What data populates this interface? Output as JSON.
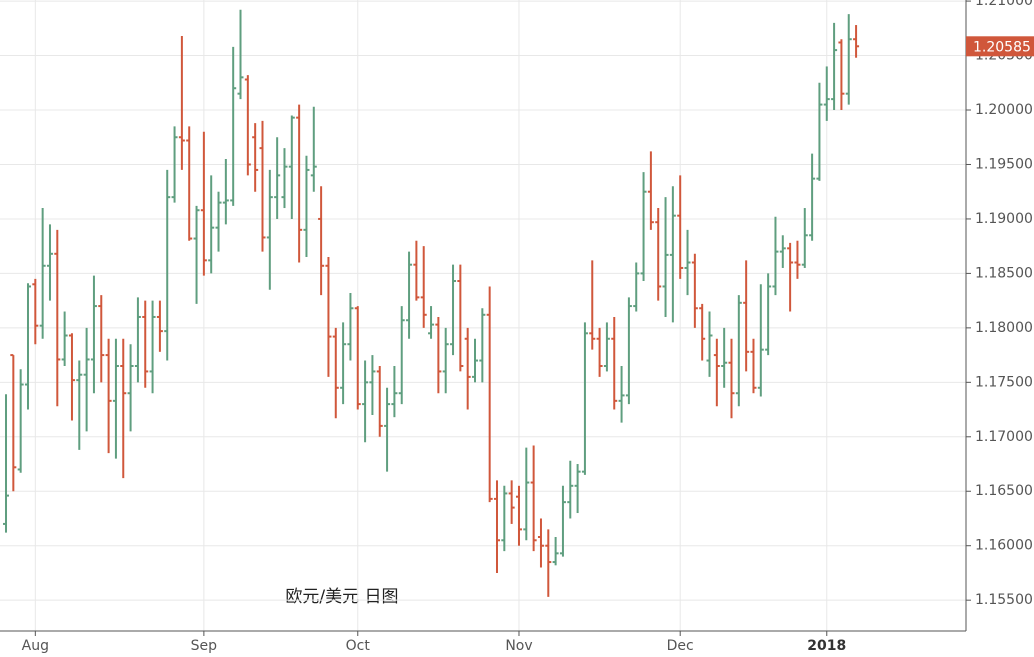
{
  "chart_data": {
    "type": "ohlc",
    "annotation": "欧元/美元 日图",
    "up_color": "#5f9e7f",
    "down_color": "#d0573b",
    "grid": true,
    "xlim": [
      -0.82,
      131
    ],
    "xticks": [
      {
        "value": 4,
        "label": "Aug"
      },
      {
        "value": 27,
        "label": "Sep"
      },
      {
        "value": 48,
        "label": "Oct"
      },
      {
        "value": 70,
        "label": "Nov"
      },
      {
        "value": 92,
        "label": "Dec"
      },
      {
        "value": 112,
        "label": "2018"
      }
    ],
    "ylim": [
      1.15217,
      1.2101
    ],
    "yticks": [
      {
        "value": 1.155,
        "label": "1.15500"
      },
      {
        "value": 1.16,
        "label": "1.16000"
      },
      {
        "value": 1.165,
        "label": "1.16500"
      },
      {
        "value": 1.17,
        "label": "1.17000"
      },
      {
        "value": 1.175,
        "label": "1.17500"
      },
      {
        "value": 1.18,
        "label": "1.18000"
      },
      {
        "value": 1.185,
        "label": "1.18500"
      },
      {
        "value": 1.19,
        "label": "1.19000"
      },
      {
        "value": 1.195,
        "label": "1.19500"
      },
      {
        "value": 1.2,
        "label": "1.20000"
      },
      {
        "value": 1.205,
        "label": "1.20500"
      },
      {
        "value": 1.21,
        "label": "1.21000"
      }
    ],
    "open": [
      1.162,
      1.1775,
      1.167,
      1.1748,
      1.184,
      1.1802,
      1.1857,
      1.1868,
      1.1771,
      1.1793,
      1.1752,
      1.1757,
      1.1771,
      1.182,
      1.1775,
      1.1733,
      1.1765,
      1.174,
      1.1765,
      1.181,
      1.176,
      1.181,
      1.1797,
      1.192,
      1.1975,
      1.1972,
      1.1882,
      1.1908,
      1.1862,
      1.1892,
      1.1915,
      1.1917,
      1.2015,
      1.2028,
      1.1975,
      1.1965,
      1.1883,
      1.192,
      1.192,
      1.1948,
      1.1993,
      1.189,
      1.194,
      1.19,
      1.1857,
      1.1792,
      1.1745,
      1.1785,
      1.1818,
      1.173,
      1.175,
      1.176,
      1.171,
      1.173,
      1.174,
      1.1807,
      1.1858,
      1.1828,
      1.1795,
      1.1803,
      1.176,
      1.1785,
      1.1843,
      1.179,
      1.1755,
      1.177,
      1.1812,
      1.1643,
      1.1605,
      1.1648,
      1.1645,
      1.1615,
      1.1658,
      1.1608,
      1.16,
      1.1585,
      1.1593,
      1.164,
      1.1655,
      1.1668,
      1.1795,
      1.179,
      1.1765,
      1.179,
      1.1733,
      1.1738,
      1.182,
      1.185,
      1.1925,
      1.1897,
      1.1838,
      1.1867,
      1.1903,
      1.1855,
      1.186,
      1.1818,
      1.177,
      1.1775,
      1.1765,
      1.1768,
      1.174,
      1.1823,
      1.1778,
      1.1745,
      1.178,
      1.1838,
      1.187,
      1.1873,
      1.186,
      1.1858,
      1.1885,
      1.1937,
      1.2005,
      1.201,
      1.2062,
      1.2015,
      1.2065
    ],
    "high": [
      1.1739,
      1.1775,
      1.1762,
      1.1841,
      1.1845,
      1.191,
      1.1895,
      1.189,
      1.1815,
      1.1795,
      1.177,
      1.18,
      1.1848,
      1.183,
      1.179,
      1.179,
      1.179,
      1.1785,
      1.1828,
      1.1825,
      1.1825,
      1.1825,
      1.1945,
      1.1985,
      1.2068,
      1.1985,
      1.1912,
      1.198,
      1.194,
      1.1925,
      1.1955,
      1.2058,
      1.2092,
      1.2032,
      1.1988,
      1.199,
      1.1945,
      1.1975,
      1.1965,
      1.1995,
      1.2005,
      1.1958,
      1.2003,
      1.193,
      1.1865,
      1.18,
      1.1805,
      1.1832,
      1.182,
      1.177,
      1.1775,
      1.1765,
      1.1745,
      1.1765,
      1.182,
      1.187,
      1.188,
      1.1875,
      1.182,
      1.181,
      1.18,
      1.1858,
      1.1858,
      1.18,
      1.179,
      1.1818,
      1.1838,
      1.166,
      1.1655,
      1.166,
      1.1655,
      1.169,
      1.1692,
      1.1625,
      1.1615,
      1.1608,
      1.1655,
      1.1678,
      1.1675,
      1.1805,
      1.1862,
      1.18,
      1.1805,
      1.181,
      1.1765,
      1.1828,
      1.186,
      1.1943,
      1.1962,
      1.191,
      1.192,
      1.193,
      1.194,
      1.189,
      1.1868,
      1.1822,
      1.1815,
      1.179,
      1.18,
      1.179,
      1.183,
      1.1862,
      1.179,
      1.184,
      1.185,
      1.1902,
      1.1885,
      1.1878,
      1.188,
      1.191,
      1.196,
      1.2025,
      1.204,
      1.208,
      1.2065,
      1.2088,
      1.2078
    ],
    "low": [
      1.1612,
      1.165,
      1.1667,
      1.1725,
      1.1785,
      1.179,
      1.1825,
      1.1728,
      1.1765,
      1.1715,
      1.1688,
      1.1705,
      1.174,
      1.175,
      1.1685,
      1.168,
      1.1662,
      1.1705,
      1.175,
      1.1745,
      1.174,
      1.1778,
      1.177,
      1.1915,
      1.1945,
      1.188,
      1.1822,
      1.1848,
      1.185,
      1.187,
      1.1895,
      1.1912,
      1.201,
      1.194,
      1.1925,
      1.187,
      1.1835,
      1.19,
      1.191,
      1.19,
      1.186,
      1.1865,
      1.1925,
      1.183,
      1.1755,
      1.1717,
      1.173,
      1.177,
      1.1725,
      1.1695,
      1.172,
      1.17,
      1.1668,
      1.1718,
      1.173,
      1.179,
      1.1825,
      1.18,
      1.179,
      1.174,
      1.174,
      1.1775,
      1.176,
      1.1725,
      1.175,
      1.175,
      1.164,
      1.1575,
      1.1595,
      1.162,
      1.16,
      1.1605,
      1.1595,
      1.158,
      1.1553,
      1.1582,
      1.159,
      1.1625,
      1.163,
      1.1665,
      1.178,
      1.1755,
      1.176,
      1.1725,
      1.1713,
      1.173,
      1.1815,
      1.1843,
      1.189,
      1.1825,
      1.181,
      1.1805,
      1.1845,
      1.183,
      1.18,
      1.177,
      1.1755,
      1.1728,
      1.1745,
      1.1717,
      1.1728,
      1.176,
      1.174,
      1.1737,
      1.1775,
      1.183,
      1.1855,
      1.1815,
      1.1845,
      1.1855,
      1.188,
      1.1935,
      1.199,
      1.2,
      1.2,
      1.2005,
      1.2048
    ],
    "close": [
      1.1646,
      1.1672,
      1.1748,
      1.1838,
      1.1802,
      1.1857,
      1.1868,
      1.1771,
      1.1793,
      1.1752,
      1.1757,
      1.1771,
      1.182,
      1.1775,
      1.1733,
      1.1765,
      1.174,
      1.1765,
      1.181,
      1.176,
      1.181,
      1.1797,
      1.192,
      1.1975,
      1.1972,
      1.1882,
      1.1908,
      1.1862,
      1.1892,
      1.1915,
      1.1917,
      1.202,
      1.203,
      1.195,
      1.1945,
      1.1883,
      1.192,
      1.194,
      1.1948,
      1.1993,
      1.189,
      1.1945,
      1.1948,
      1.1857,
      1.1792,
      1.1745,
      1.1785,
      1.1818,
      1.173,
      1.175,
      1.176,
      1.171,
      1.173,
      1.174,
      1.1807,
      1.1858,
      1.1828,
      1.1812,
      1.1803,
      1.176,
      1.1785,
      1.1843,
      1.1765,
      1.1755,
      1.177,
      1.1812,
      1.1643,
      1.1605,
      1.1648,
      1.1635,
      1.1615,
      1.1658,
      1.1605,
      1.16,
      1.1585,
      1.1593,
      1.164,
      1.1655,
      1.1668,
      1.1795,
      1.179,
      1.1765,
      1.179,
      1.1733,
      1.1738,
      1.182,
      1.185,
      1.1925,
      1.1897,
      1.1838,
      1.1867,
      1.1903,
      1.1855,
      1.186,
      1.1818,
      1.179,
      1.1793,
      1.1765,
      1.1768,
      1.174,
      1.1823,
      1.1778,
      1.1745,
      1.178,
      1.1838,
      1.187,
      1.1873,
      1.186,
      1.1858,
      1.1885,
      1.1937,
      1.2005,
      1.201,
      1.2055,
      1.2015,
      1.2065,
      1.20585
    ]
  }
}
